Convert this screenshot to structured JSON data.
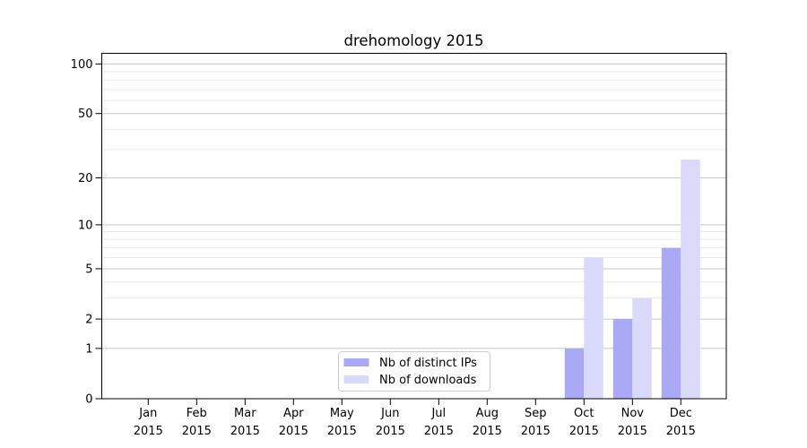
{
  "chart_data": {
    "type": "bar",
    "title": "drehomology 2015",
    "x_year_label": "2015",
    "categories": [
      "Jan",
      "Feb",
      "Mar",
      "Apr",
      "May",
      "Jun",
      "Jul",
      "Aug",
      "Sep",
      "Oct",
      "Nov",
      "Dec"
    ],
    "series": [
      {
        "name": "Nb of distinct IPs",
        "color": "#a9a9f5",
        "values": [
          0,
          0,
          0,
          0,
          0,
          0,
          0,
          0,
          0,
          1,
          2,
          7
        ]
      },
      {
        "name": "Nb of downloads",
        "color": "#d9d9fa",
        "values": [
          0,
          0,
          0,
          0,
          0,
          0,
          0,
          0,
          0,
          6,
          3,
          26
        ]
      }
    ],
    "y_axis": {
      "scale": "log1p",
      "ticks_major": [
        0,
        1,
        2,
        5,
        10,
        20,
        50,
        100
      ],
      "ticks_minor": [
        3,
        4,
        6,
        7,
        8,
        9,
        30,
        40,
        60,
        70,
        80,
        90
      ],
      "ylim": [
        0,
        116
      ]
    },
    "xlabel": "",
    "ylabel": "",
    "grid": true,
    "legend_position": "lower center",
    "colors": {
      "major_grid": "#c6c6c6",
      "minor_grid": "#e9e9e9",
      "spine": "#000000",
      "legend_border": "#cccccc"
    }
  }
}
